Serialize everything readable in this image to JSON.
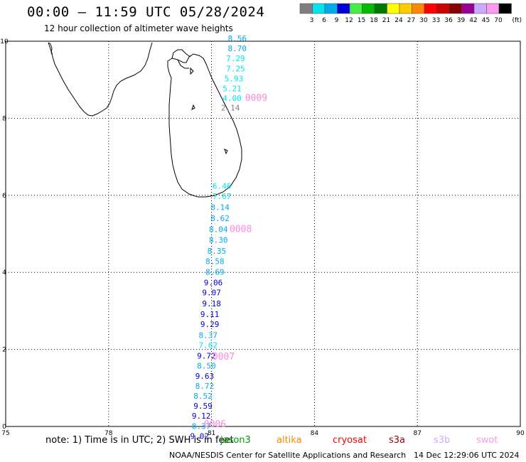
{
  "title": "00:00 – 11:59 UTC 05/28/2024",
  "subtitle": "12 hour collection of altimeter wave heights",
  "legend": {
    "unit": "(ft)",
    "bins": [
      {
        "label": "3",
        "color": "#7f7f7f"
      },
      {
        "label": "6",
        "color": "#00e5ee"
      },
      {
        "label": "9",
        "color": "#00aaee"
      },
      {
        "label": "12",
        "color": "#0000dd"
      },
      {
        "label": "15",
        "color": "#44ee44"
      },
      {
        "label": "18",
        "color": "#00bb00"
      },
      {
        "label": "21",
        "color": "#007700"
      },
      {
        "label": "24",
        "color": "#ffff00"
      },
      {
        "label": "27",
        "color": "#ffcc00"
      },
      {
        "label": "30",
        "color": "#ff8800"
      },
      {
        "label": "33",
        "color": "#ff0000"
      },
      {
        "label": "36",
        "color": "#cc0000"
      },
      {
        "label": "39",
        "color": "#880000"
      },
      {
        "label": "42",
        "color": "#990099"
      },
      {
        "label": "45",
        "color": "#ccaaff"
      },
      {
        "label": "70",
        "color": "#ff99ee"
      },
      {
        "label": "",
        "color": "#000000"
      }
    ]
  },
  "axes": {
    "x_ticks": [
      "75",
      "78",
      "81",
      "84",
      "87",
      "90"
    ],
    "y_ticks": [
      "0",
      "2",
      "4",
      "6",
      "8",
      "10"
    ],
    "lon_range": [
      75,
      90
    ],
    "lat_range": [
      0,
      10
    ]
  },
  "tracks": [
    {
      "pass_id": "0009",
      "pass_color": "#ff88dd",
      "label_pos": [
        82.3,
        8.45
      ],
      "points": [
        {
          "lon": 81.75,
          "lat": 10.0,
          "value": "8.56",
          "color": "#00aaee"
        },
        {
          "lon": 81.75,
          "lat": 9.74,
          "value": "8.70",
          "color": "#00aaee"
        },
        {
          "lon": 81.7,
          "lat": 9.48,
          "value": "7.29",
          "color": "#00e5ee"
        },
        {
          "lon": 81.7,
          "lat": 9.22,
          "value": "7.25",
          "color": "#00e5ee"
        },
        {
          "lon": 81.65,
          "lat": 8.96,
          "value": "5.93",
          "color": "#00e5ee"
        },
        {
          "lon": 81.6,
          "lat": 8.7,
          "value": "5.21",
          "color": "#00e5ee"
        },
        {
          "lon": 81.6,
          "lat": 8.45,
          "value": "4.00",
          "color": "#00e5ee"
        },
        {
          "lon": 81.55,
          "lat": 8.2,
          "value": "2.14",
          "color": "#7f7f7f"
        }
      ]
    },
    {
      "pass_id": "0008",
      "pass_color": "#ff88dd",
      "label_pos": [
        81.85,
        5.05
      ],
      "points": [
        {
          "lon": 81.3,
          "lat": 6.17,
          "value": "6.46",
          "color": "#00e5ee"
        },
        {
          "lon": 81.3,
          "lat": 5.9,
          "value": "7.67",
          "color": "#00e5ee"
        },
        {
          "lon": 81.25,
          "lat": 5.62,
          "value": "8.14",
          "color": "#00aaee"
        },
        {
          "lon": 81.25,
          "lat": 5.33,
          "value": "8.62",
          "color": "#00aaee"
        },
        {
          "lon": 81.2,
          "lat": 5.05,
          "value": "8.04",
          "color": "#00aaee"
        },
        {
          "lon": 81.2,
          "lat": 4.77,
          "value": "8.30",
          "color": "#00aaee"
        },
        {
          "lon": 81.15,
          "lat": 4.48,
          "value": "8.35",
          "color": "#00aaee"
        },
        {
          "lon": 81.1,
          "lat": 4.22,
          "value": "8.58",
          "color": "#00aaee"
        },
        {
          "lon": 81.1,
          "lat": 3.94,
          "value": "8.69",
          "color": "#00aaee"
        },
        {
          "lon": 81.05,
          "lat": 3.66,
          "value": "9.06",
          "color": "#0000dd"
        },
        {
          "lon": 81.0,
          "lat": 3.4,
          "value": "9.07",
          "color": "#0000dd"
        },
        {
          "lon": 81.0,
          "lat": 3.12,
          "value": "9.18",
          "color": "#0000dd"
        },
        {
          "lon": 80.95,
          "lat": 2.84,
          "value": "9.11",
          "color": "#0000dd"
        },
        {
          "lon": 80.95,
          "lat": 2.58,
          "value": "9.29",
          "color": "#0000dd"
        },
        {
          "lon": 80.9,
          "lat": 2.3,
          "value": "8.37",
          "color": "#00aaee"
        },
        {
          "lon": 80.9,
          "lat": 2.04,
          "value": "7.62",
          "color": "#00e5ee"
        },
        {
          "lon": 80.85,
          "lat": 1.76,
          "value": "9.72",
          "color": "#0000dd"
        }
      ]
    },
    {
      "pass_id": "0007",
      "pass_color": "#ff88dd",
      "label_pos": [
        81.35,
        1.73
      ],
      "points": [
        {
          "lon": 80.85,
          "lat": 1.5,
          "value": "8.50",
          "color": "#00aaee"
        },
        {
          "lon": 80.8,
          "lat": 1.24,
          "value": "9.63",
          "color": "#0000dd"
        },
        {
          "lon": 80.8,
          "lat": 0.98,
          "value": "8.72",
          "color": "#00aaee"
        },
        {
          "lon": 80.75,
          "lat": 0.72,
          "value": "8.52",
          "color": "#00aaee"
        },
        {
          "lon": 80.75,
          "lat": 0.46,
          "value": "9.59",
          "color": "#0000dd"
        },
        {
          "lon": 80.7,
          "lat": 0.2,
          "value": "9.12",
          "color": "#0000dd"
        }
      ]
    },
    {
      "pass_id": "0006",
      "pass_color": "#ff88dd",
      "label_pos": [
        81.1,
        -0.02
      ],
      "points": [
        {
          "lon": 80.7,
          "lat": -0.06,
          "value": "8.37",
          "color": "#00aaee"
        },
        {
          "lon": 80.65,
          "lat": -0.32,
          "value": "9.02",
          "color": "#0000dd"
        }
      ]
    }
  ],
  "note": "note:  1) Time is in UTC;  2) SWH is in feet",
  "satellites": [
    {
      "name": "jason3",
      "color": "#009900"
    },
    {
      "name": "altika",
      "color": "#ff8800"
    },
    {
      "name": "cryosat",
      "color": "#ff0000"
    },
    {
      "name": "s3a",
      "color": "#990000"
    },
    {
      "name": "s3b",
      "color": "#ccaaff"
    },
    {
      "name": "swot",
      "color": "#ff99ee"
    }
  ],
  "credit": "NOAA/NESDIS Center for Satellite Applications and Research",
  "generated": "14 Dec 12:29:06 UTC 2024"
}
